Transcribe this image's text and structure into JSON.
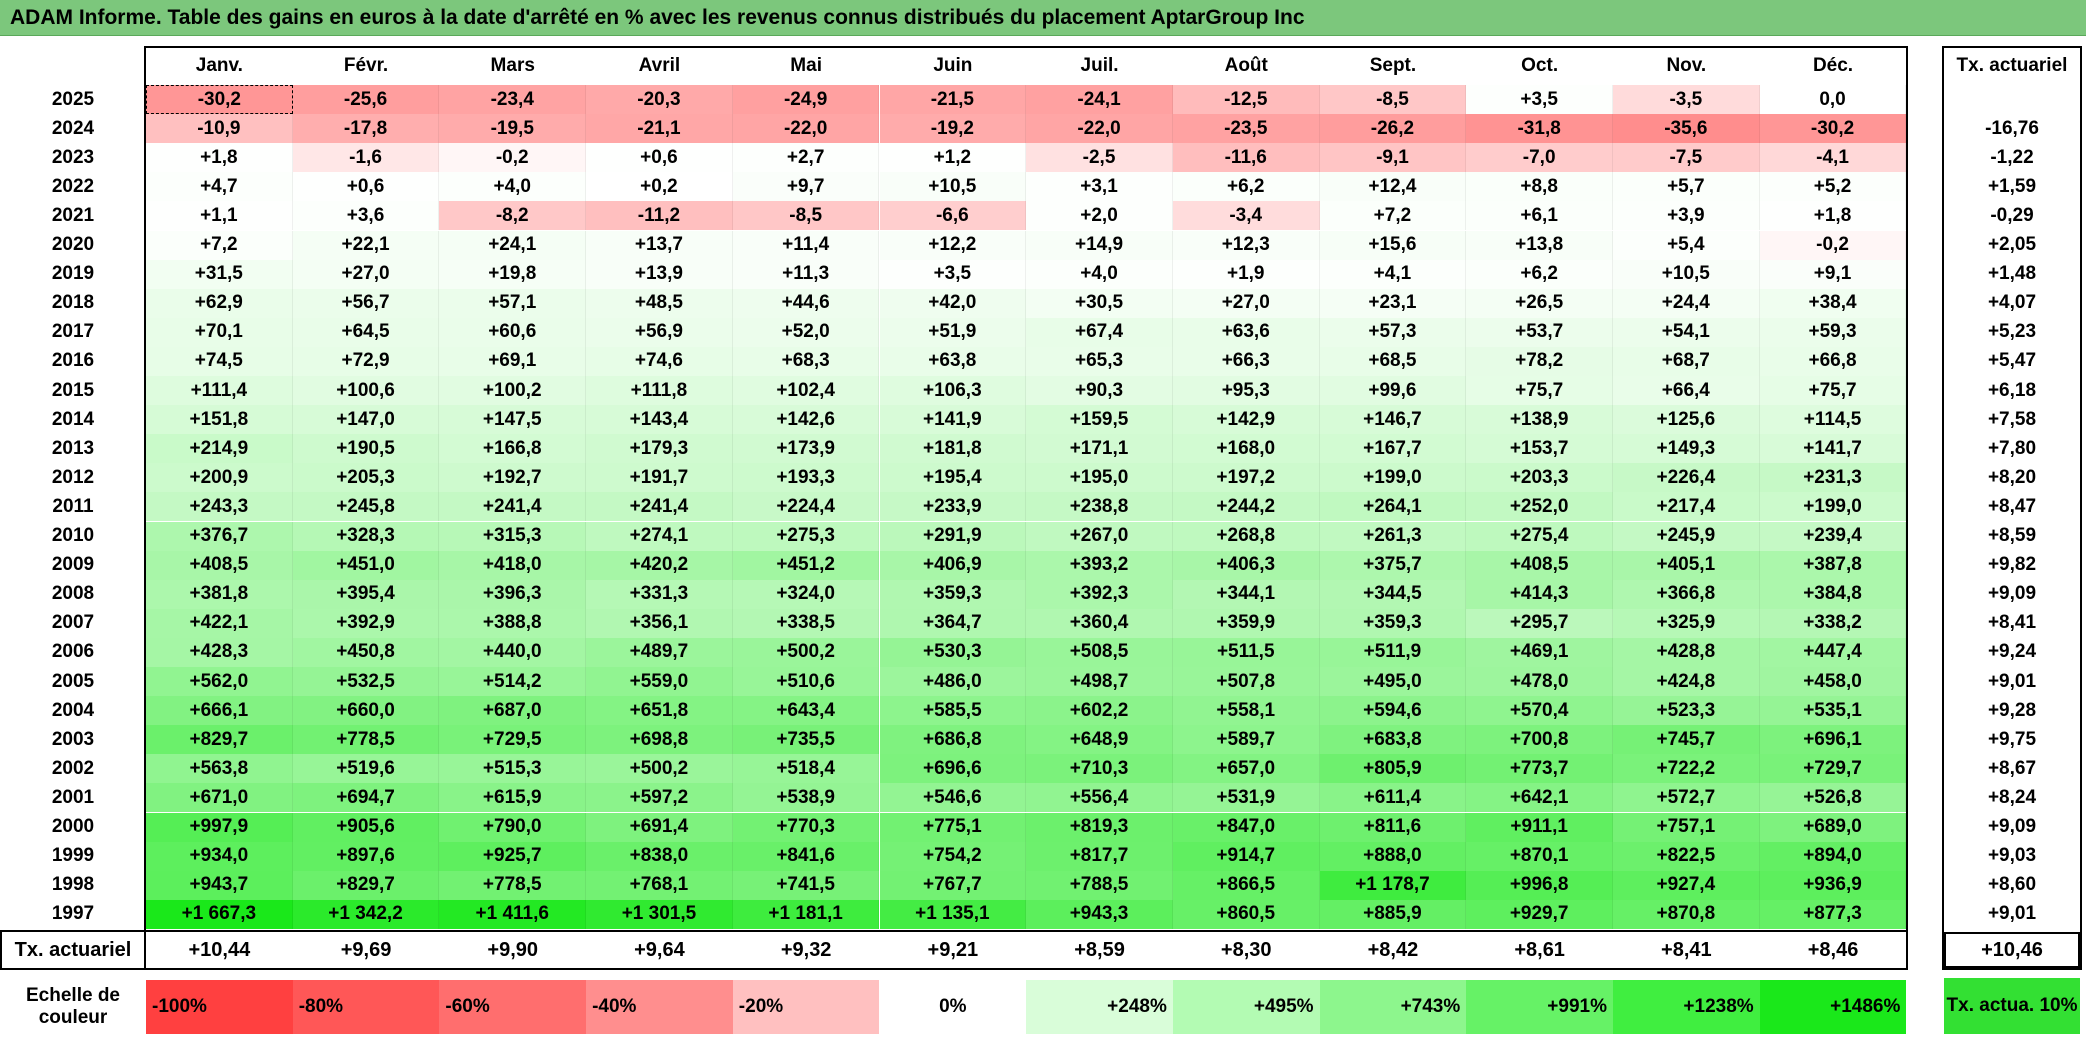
{
  "header": {
    "title": "ADAM Informe. Table des gains en euros à la date d'arrêté en % avec les revenus connus distribués du placement AptarGroup Inc"
  },
  "table": {
    "months": [
      "Janv.",
      "Févr.",
      "Mars",
      "Avril",
      "Mai",
      "Juin",
      "Juil.",
      "Août",
      "Sept.",
      "Oct.",
      "Nov.",
      "Déc."
    ],
    "rate_header": "Tx. actuariel",
    "rows": [
      {
        "year": "2025",
        "values": [
          "-30,2",
          "-25,6",
          "-23,4",
          "-20,3",
          "-24,9",
          "-21,5",
          "-24,1",
          "-12,5",
          "-8,5",
          "+3,5",
          "-3,5",
          "0,0"
        ],
        "rate": null
      },
      {
        "year": "2024",
        "values": [
          "-10,9",
          "-17,8",
          "-19,5",
          "-21,1",
          "-22,0",
          "-19,2",
          "-22,0",
          "-23,5",
          "-26,2",
          "-31,8",
          "-35,6",
          "-30,2"
        ],
        "rate": "-16,76"
      },
      {
        "year": "2023",
        "values": [
          "+1,8",
          "-1,6",
          "-0,2",
          "+0,6",
          "+2,7",
          "+1,2",
          "-2,5",
          "-11,6",
          "-9,1",
          "-7,0",
          "-7,5",
          "-4,1"
        ],
        "rate": "-1,22"
      },
      {
        "year": "2022",
        "values": [
          "+4,7",
          "+0,6",
          "+4,0",
          "+0,2",
          "+9,7",
          "+10,5",
          "+3,1",
          "+6,2",
          "+12,4",
          "+8,8",
          "+5,7",
          "+5,2"
        ],
        "rate": "+1,59"
      },
      {
        "year": "2021",
        "values": [
          "+1,1",
          "+3,6",
          "-8,2",
          "-11,2",
          "-8,5",
          "-6,6",
          "+2,0",
          "-3,4",
          "+7,2",
          "+6,1",
          "+3,9",
          "+1,8"
        ],
        "rate": "-0,29"
      },
      {
        "year": "2020",
        "values": [
          "+7,2",
          "+22,1",
          "+24,1",
          "+13,7",
          "+11,4",
          "+12,2",
          "+14,9",
          "+12,3",
          "+15,6",
          "+13,8",
          "+5,4",
          "-0,2"
        ],
        "rate": "+2,05"
      },
      {
        "year": "2019",
        "values": [
          "+31,5",
          "+27,0",
          "+19,8",
          "+13,9",
          "+11,3",
          "+3,5",
          "+4,0",
          "+1,9",
          "+4,1",
          "+6,2",
          "+10,5",
          "+9,1"
        ],
        "rate": "+1,48"
      },
      {
        "year": "2018",
        "values": [
          "+62,9",
          "+56,7",
          "+57,1",
          "+48,5",
          "+44,6",
          "+42,0",
          "+30,5",
          "+27,0",
          "+23,1",
          "+26,5",
          "+24,4",
          "+38,4"
        ],
        "rate": "+4,07"
      },
      {
        "year": "2017",
        "values": [
          "+70,1",
          "+64,5",
          "+60,6",
          "+56,9",
          "+52,0",
          "+51,9",
          "+67,4",
          "+63,6",
          "+57,3",
          "+53,7",
          "+54,1",
          "+59,3"
        ],
        "rate": "+5,23"
      },
      {
        "year": "2016",
        "values": [
          "+74,5",
          "+72,9",
          "+69,1",
          "+74,6",
          "+68,3",
          "+63,8",
          "+65,3",
          "+66,3",
          "+68,5",
          "+78,2",
          "+68,7",
          "+66,8"
        ],
        "rate": "+5,47"
      },
      {
        "year": "2015",
        "values": [
          "+111,4",
          "+100,6",
          "+100,2",
          "+111,8",
          "+102,4",
          "+106,3",
          "+90,3",
          "+95,3",
          "+99,6",
          "+75,7",
          "+66,4",
          "+75,7"
        ],
        "rate": "+6,18"
      },
      {
        "year": "2014",
        "values": [
          "+151,8",
          "+147,0",
          "+147,5",
          "+143,4",
          "+142,6",
          "+141,9",
          "+159,5",
          "+142,9",
          "+146,7",
          "+138,9",
          "+125,6",
          "+114,5"
        ],
        "rate": "+7,58"
      },
      {
        "year": "2013",
        "values": [
          "+214,9",
          "+190,5",
          "+166,8",
          "+179,3",
          "+173,9",
          "+181,8",
          "+171,1",
          "+168,0",
          "+167,7",
          "+153,7",
          "+149,3",
          "+141,7"
        ],
        "rate": "+7,80"
      },
      {
        "year": "2012",
        "values": [
          "+200,9",
          "+205,3",
          "+192,7",
          "+191,7",
          "+193,3",
          "+195,4",
          "+195,0",
          "+197,2",
          "+199,0",
          "+203,3",
          "+226,4",
          "+231,3"
        ],
        "rate": "+8,20"
      },
      {
        "year": "2011",
        "values": [
          "+243,3",
          "+245,8",
          "+241,4",
          "+241,4",
          "+224,4",
          "+233,9",
          "+238,8",
          "+244,2",
          "+264,1",
          "+252,0",
          "+217,4",
          "+199,0"
        ],
        "rate": "+8,47"
      },
      {
        "year": "2010",
        "values": [
          "+376,7",
          "+328,3",
          "+315,3",
          "+274,1",
          "+275,3",
          "+291,9",
          "+267,0",
          "+268,8",
          "+261,3",
          "+275,4",
          "+245,9",
          "+239,4"
        ],
        "rate": "+8,59"
      },
      {
        "year": "2009",
        "values": [
          "+408,5",
          "+451,0",
          "+418,0",
          "+420,2",
          "+451,2",
          "+406,9",
          "+393,2",
          "+406,3",
          "+375,7",
          "+408,5",
          "+405,1",
          "+387,8"
        ],
        "rate": "+9,82"
      },
      {
        "year": "2008",
        "values": [
          "+381,8",
          "+395,4",
          "+396,3",
          "+331,3",
          "+324,0",
          "+359,3",
          "+392,3",
          "+344,1",
          "+344,5",
          "+414,3",
          "+366,8",
          "+384,8"
        ],
        "rate": "+9,09"
      },
      {
        "year": "2007",
        "values": [
          "+422,1",
          "+392,9",
          "+388,8",
          "+356,1",
          "+338,5",
          "+364,7",
          "+360,4",
          "+359,9",
          "+359,3",
          "+295,7",
          "+325,9",
          "+338,2"
        ],
        "rate": "+8,41"
      },
      {
        "year": "2006",
        "values": [
          "+428,3",
          "+450,8",
          "+440,0",
          "+489,7",
          "+500,2",
          "+530,3",
          "+508,5",
          "+511,5",
          "+511,9",
          "+469,1",
          "+428,8",
          "+447,4"
        ],
        "rate": "+9,24"
      },
      {
        "year": "2005",
        "values": [
          "+562,0",
          "+532,5",
          "+514,2",
          "+559,0",
          "+510,6",
          "+486,0",
          "+498,7",
          "+507,8",
          "+495,0",
          "+478,0",
          "+424,8",
          "+458,0"
        ],
        "rate": "+9,01"
      },
      {
        "year": "2004",
        "values": [
          "+666,1",
          "+660,0",
          "+687,0",
          "+651,8",
          "+643,4",
          "+585,5",
          "+602,2",
          "+558,1",
          "+594,6",
          "+570,4",
          "+523,3",
          "+535,1"
        ],
        "rate": "+9,28"
      },
      {
        "year": "2003",
        "values": [
          "+829,7",
          "+778,5",
          "+729,5",
          "+698,8",
          "+735,5",
          "+686,8",
          "+648,9",
          "+589,7",
          "+683,8",
          "+700,8",
          "+745,7",
          "+696,1"
        ],
        "rate": "+9,75"
      },
      {
        "year": "2002",
        "values": [
          "+563,8",
          "+519,6",
          "+515,3",
          "+500,2",
          "+518,4",
          "+696,6",
          "+710,3",
          "+657,0",
          "+805,9",
          "+773,7",
          "+722,2",
          "+729,7"
        ],
        "rate": "+8,67"
      },
      {
        "year": "2001",
        "values": [
          "+671,0",
          "+694,7",
          "+615,9",
          "+597,2",
          "+538,9",
          "+546,6",
          "+556,4",
          "+531,9",
          "+611,4",
          "+642,1",
          "+572,7",
          "+526,8"
        ],
        "rate": "+8,24"
      },
      {
        "year": "2000",
        "values": [
          "+997,9",
          "+905,6",
          "+790,0",
          "+691,4",
          "+770,3",
          "+775,1",
          "+819,3",
          "+847,0",
          "+811,6",
          "+911,1",
          "+757,1",
          "+689,0"
        ],
        "rate": "+9,09"
      },
      {
        "year": "1999",
        "values": [
          "+934,0",
          "+897,6",
          "+925,7",
          "+838,0",
          "+841,6",
          "+754,2",
          "+817,7",
          "+914,7",
          "+888,0",
          "+870,1",
          "+822,5",
          "+894,0"
        ],
        "rate": "+9,03"
      },
      {
        "year": "1998",
        "values": [
          "+943,7",
          "+829,7",
          "+778,5",
          "+768,1",
          "+741,5",
          "+767,7",
          "+788,5",
          "+866,5",
          "+1 178,7",
          "+996,8",
          "+927,4",
          "+936,9"
        ],
        "rate": "+8,60"
      },
      {
        "year": "1997",
        "values": [
          "+1 667,3",
          "+1 342,2",
          "+1 411,6",
          "+1 301,5",
          "+1 181,1",
          "+1 135,1",
          "+943,3",
          "+860,5",
          "+885,9",
          "+929,7",
          "+870,8",
          "+877,3"
        ],
        "rate": "+9,01"
      }
    ],
    "footer": {
      "label": "Tx. actuariel",
      "values": [
        "+10,44",
        "+9,69",
        "+9,90",
        "+9,64",
        "+9,32",
        "+9,21",
        "+8,59",
        "+8,30",
        "+8,42",
        "+8,61",
        "+8,41",
        "+8,46"
      ],
      "rate": "+10,46"
    }
  },
  "color_scale": {
    "label": "Echelle de couleur",
    "items": [
      {
        "label": "-100%",
        "color": "#ff4040"
      },
      {
        "label": "-80%",
        "color": "#ff5757"
      },
      {
        "label": "-60%",
        "color": "#ff6e6e"
      },
      {
        "label": "-40%",
        "color": "#ff8e8e"
      },
      {
        "label": "-20%",
        "color": "#ffc0c0"
      },
      {
        "label": "0%",
        "color": "#ffffff"
      },
      {
        "label": "+248%",
        "color": "#d9fdd9"
      },
      {
        "label": "+495%",
        "color": "#b3fbb3"
      },
      {
        "label": "+743%",
        "color": "#8df68d"
      },
      {
        "label": "+991%",
        "color": "#66f266"
      },
      {
        "label": "+1238%",
        "color": "#40ee40"
      },
      {
        "label": "+1486%",
        "color": "#1ae81a"
      }
    ],
    "rate_item": {
      "label": "Tx. actua. 10%",
      "color": "#33e033"
    }
  }
}
